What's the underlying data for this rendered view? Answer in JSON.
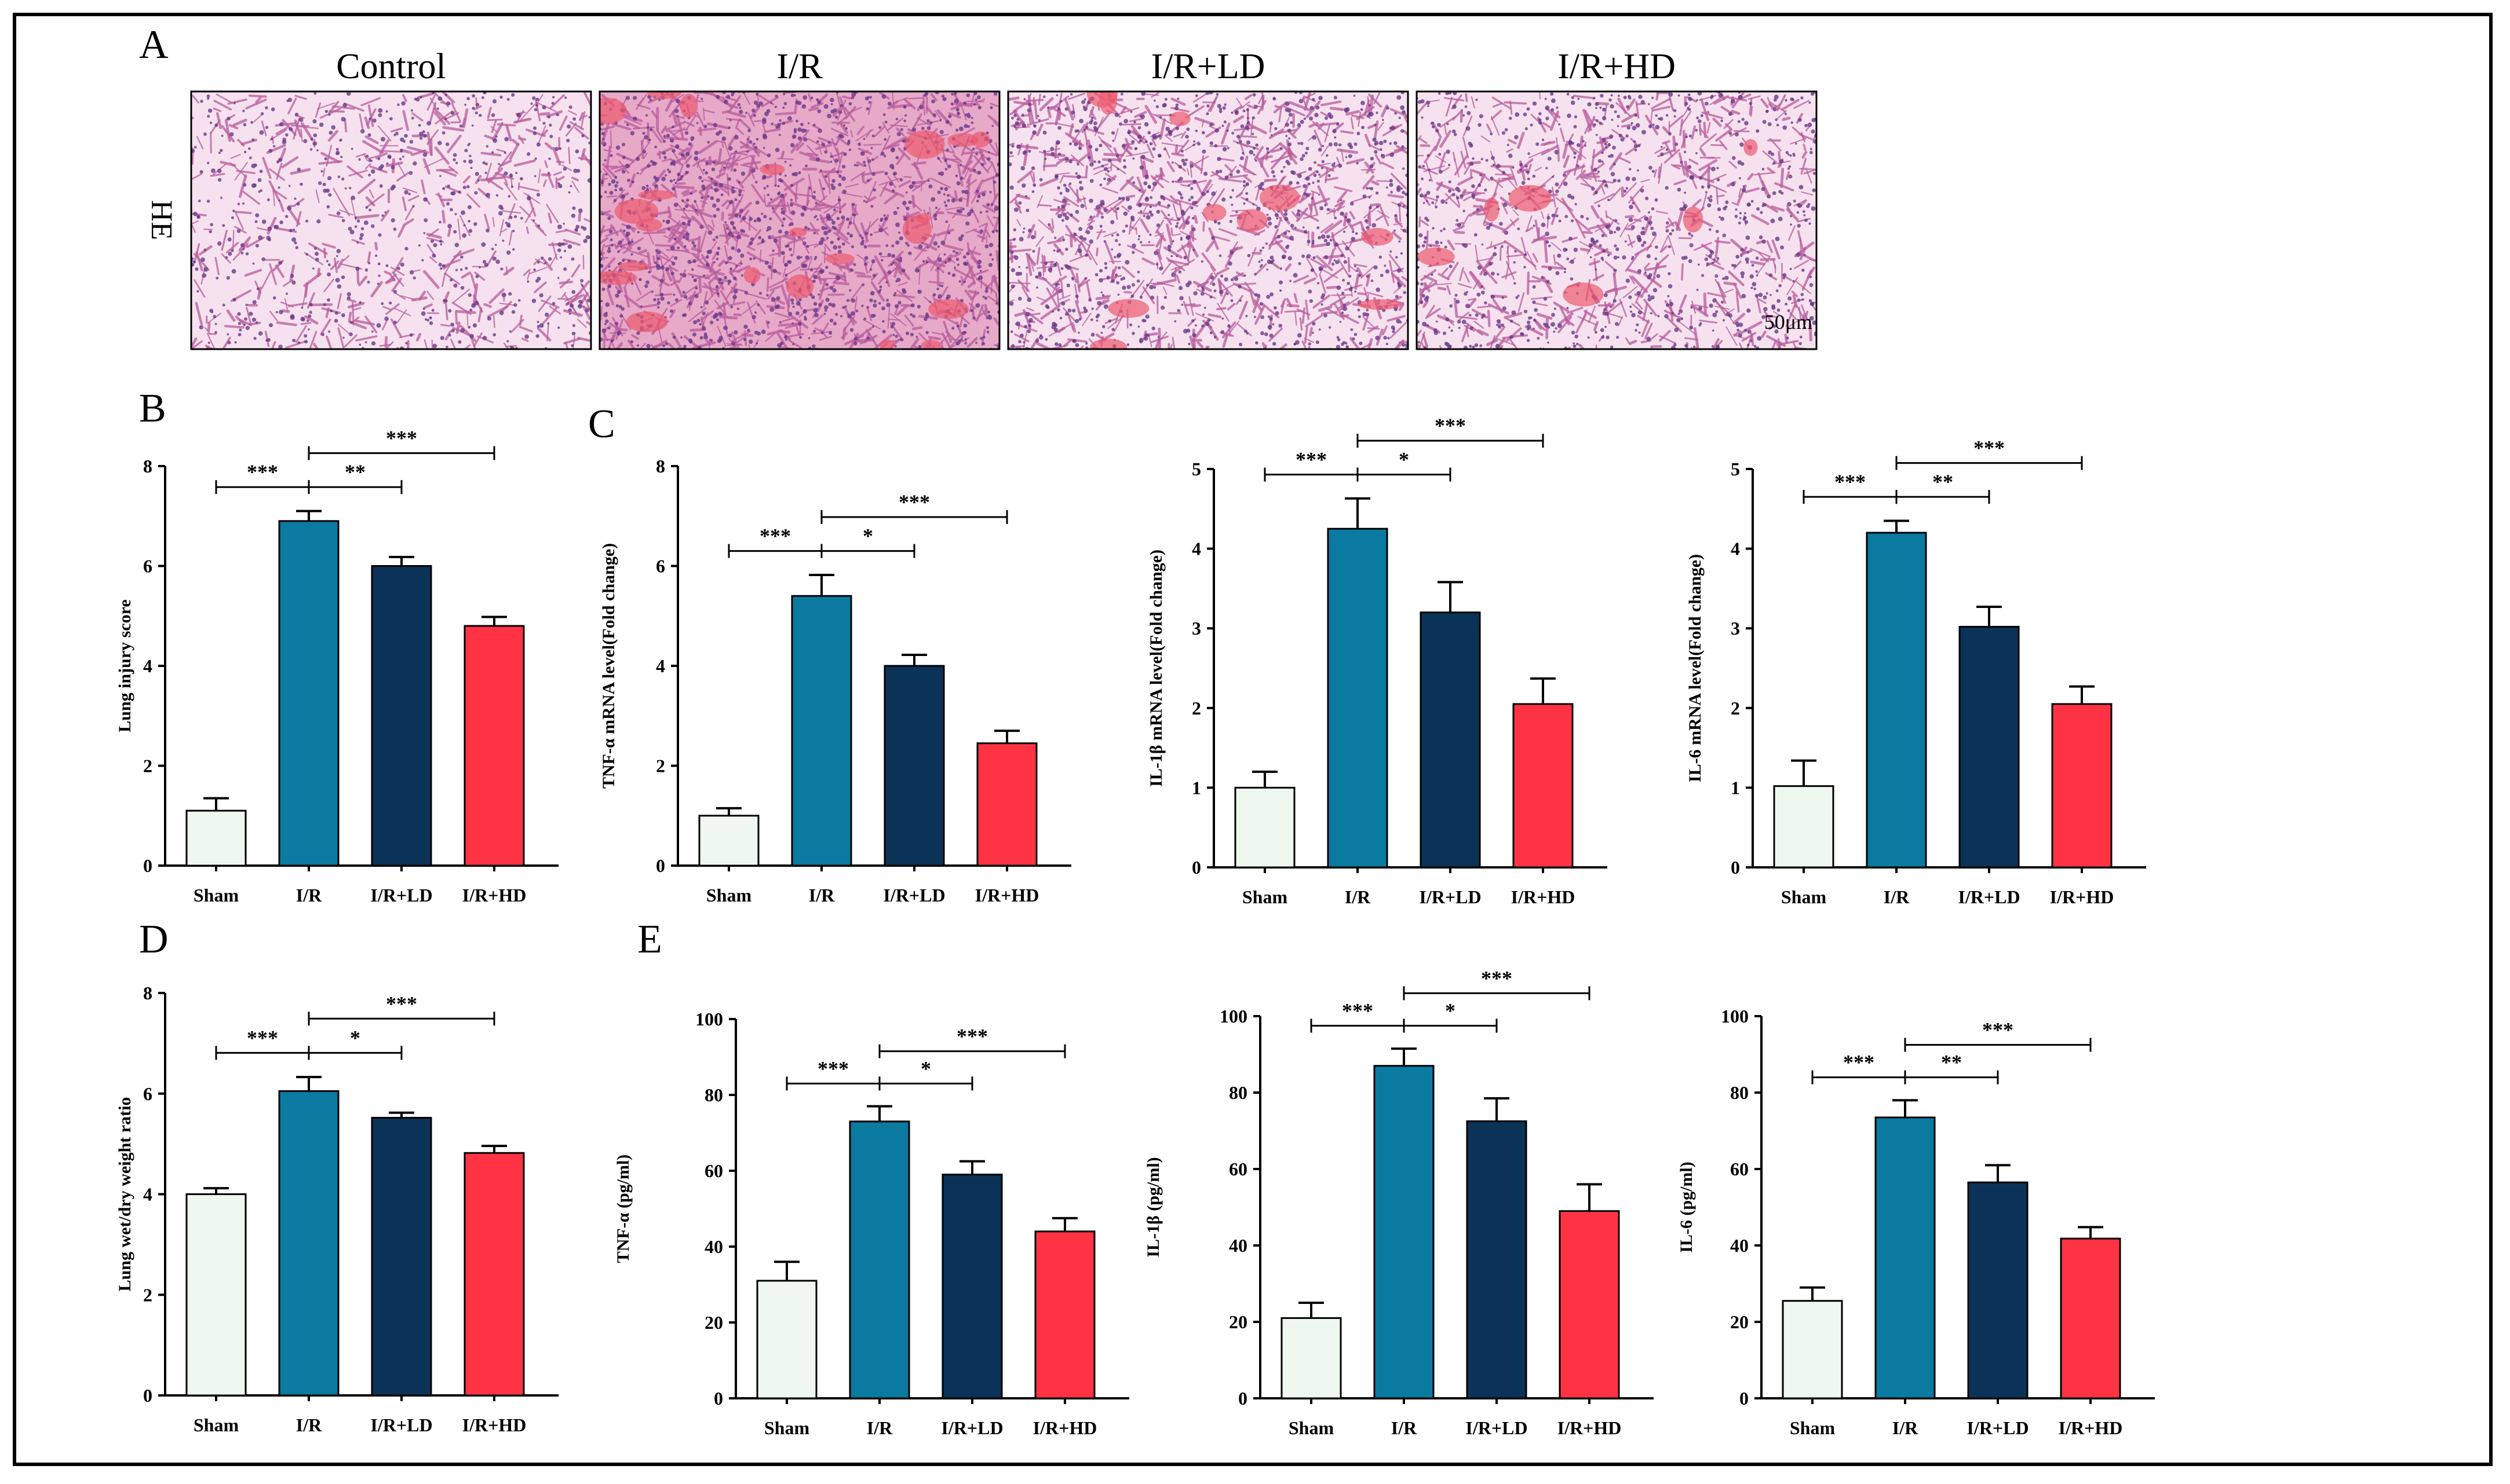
{
  "figure": {
    "panel_labels": [
      "A",
      "B",
      "C",
      "D",
      "E"
    ],
    "histology": {
      "row_label": "HE",
      "columns": [
        "Control",
        "I/R",
        "I/R+LD",
        "I/R+HD"
      ],
      "scale_bar": "50μm",
      "colors": {
        "background": "#f6e2ee",
        "tissue": "#b85c9c",
        "nuclei": "#6a3a8a",
        "blood": "#ec5a6e"
      }
    },
    "colors": {
      "Sham": "#eef8ef",
      "I/R": "#0a7aa0",
      "I/R+LD": "#0b3358",
      "I/R+HD": "#ff3344"
    }
  },
  "chart_data": [
    {
      "panel": "B",
      "type": "bar",
      "ylabel": "Lung injury score",
      "ylim": [
        0,
        8
      ],
      "yticks": [
        0,
        2,
        4,
        6,
        8
      ],
      "categories": [
        "Sham",
        "I/R",
        "I/R+LD",
        "I/R+HD"
      ],
      "values": [
        1.1,
        6.9,
        6.0,
        4.8
      ],
      "errors": [
        0.25,
        0.2,
        0.18,
        0.18
      ],
      "comparisons": [
        {
          "from": 0,
          "to": 1,
          "label": "***"
        },
        {
          "from": 1,
          "to": 2,
          "label": "**"
        },
        {
          "from": 1,
          "to": 3,
          "label": "***"
        }
      ]
    },
    {
      "panel": "C",
      "type": "bar",
      "ylabel": "TNF-α mRNA level(Fold change)",
      "ylim": [
        0,
        8
      ],
      "yticks": [
        0,
        2,
        4,
        6,
        8
      ],
      "categories": [
        "Sham",
        "I/R",
        "I/R+LD",
        "I/R+HD"
      ],
      "values": [
        1.0,
        5.4,
        4.0,
        2.45
      ],
      "errors": [
        0.15,
        0.42,
        0.22,
        0.25
      ],
      "comparisons": [
        {
          "from": 0,
          "to": 1,
          "label": "***"
        },
        {
          "from": 1,
          "to": 2,
          "label": "*"
        },
        {
          "from": 1,
          "to": 3,
          "label": "***"
        }
      ]
    },
    {
      "type": "bar",
      "ylabel": "IL-1β mRNA level(Fold change)",
      "ylim": [
        0,
        5
      ],
      "yticks": [
        0,
        1,
        2,
        3,
        4,
        5
      ],
      "categories": [
        "Sham",
        "I/R",
        "I/R+LD",
        "I/R+HD"
      ],
      "values": [
        1.0,
        4.25,
        3.2,
        2.05
      ],
      "errors": [
        0.2,
        0.38,
        0.38,
        0.32
      ],
      "comparisons": [
        {
          "from": 0,
          "to": 1,
          "label": "***"
        },
        {
          "from": 1,
          "to": 2,
          "label": "*"
        },
        {
          "from": 1,
          "to": 3,
          "label": "***"
        }
      ]
    },
    {
      "type": "bar",
      "ylabel": "IL-6 mRNA level(Fold change)",
      "ylim": [
        0,
        5
      ],
      "yticks": [
        0,
        1,
        2,
        3,
        4,
        5
      ],
      "categories": [
        "Sham",
        "I/R",
        "I/R+LD",
        "I/R+HD"
      ],
      "values": [
        1.02,
        4.2,
        3.02,
        2.05
      ],
      "errors": [
        0.32,
        0.15,
        0.25,
        0.22
      ],
      "comparisons": [
        {
          "from": 0,
          "to": 1,
          "label": "***"
        },
        {
          "from": 1,
          "to": 2,
          "label": "**"
        },
        {
          "from": 1,
          "to": 3,
          "label": "***"
        }
      ]
    },
    {
      "panel": "D",
      "type": "bar",
      "ylabel": "Lung wet/dry weight ratio",
      "ylim": [
        0,
        8
      ],
      "yticks": [
        0,
        2,
        4,
        6,
        8
      ],
      "categories": [
        "Sham",
        "I/R",
        "I/R+LD",
        "I/R+HD"
      ],
      "values": [
        4.0,
        6.05,
        5.52,
        4.82
      ],
      "errors": [
        0.12,
        0.28,
        0.1,
        0.14
      ],
      "comparisons": [
        {
          "from": 0,
          "to": 1,
          "label": "***"
        },
        {
          "from": 1,
          "to": 2,
          "label": "*"
        },
        {
          "from": 1,
          "to": 3,
          "label": "***"
        }
      ]
    },
    {
      "panel": "E",
      "type": "bar",
      "ylabel": "TNF-α (pg/ml)",
      "ylim": [
        0,
        100
      ],
      "yticks": [
        0,
        20,
        40,
        60,
        80,
        100
      ],
      "categories": [
        "Sham",
        "I/R",
        "I/R+LD",
        "I/R+HD"
      ],
      "values": [
        31,
        73,
        59,
        44
      ],
      "errors": [
        5,
        4,
        3.5,
        3.5
      ],
      "comparisons": [
        {
          "from": 0,
          "to": 1,
          "label": "***"
        },
        {
          "from": 1,
          "to": 2,
          "label": "*"
        },
        {
          "from": 1,
          "to": 3,
          "label": "***"
        }
      ]
    },
    {
      "type": "bar",
      "ylabel": "IL-1β (pg/ml)",
      "ylim": [
        0,
        100
      ],
      "yticks": [
        0,
        20,
        40,
        60,
        80,
        100
      ],
      "categories": [
        "Sham",
        "I/R",
        "I/R+LD",
        "I/R+HD"
      ],
      "values": [
        21,
        87,
        72.5,
        49
      ],
      "errors": [
        4,
        4.5,
        6,
        7
      ],
      "comparisons": [
        {
          "from": 0,
          "to": 1,
          "label": "***"
        },
        {
          "from": 1,
          "to": 2,
          "label": "*"
        },
        {
          "from": 1,
          "to": 3,
          "label": "***"
        }
      ]
    },
    {
      "type": "bar",
      "ylabel": "IL-6 (pg/ml)",
      "ylim": [
        0,
        100
      ],
      "yticks": [
        0,
        20,
        40,
        60,
        80,
        100
      ],
      "categories": [
        "Sham",
        "I/R",
        "I/R+LD",
        "I/R+HD"
      ],
      "values": [
        25.5,
        73.5,
        56.5,
        41.8
      ],
      "errors": [
        3.5,
        4.5,
        4.5,
        3
      ],
      "comparisons": [
        {
          "from": 0,
          "to": 1,
          "label": "***"
        },
        {
          "from": 1,
          "to": 2,
          "label": "**"
        },
        {
          "from": 1,
          "to": 3,
          "label": "***"
        }
      ]
    }
  ]
}
